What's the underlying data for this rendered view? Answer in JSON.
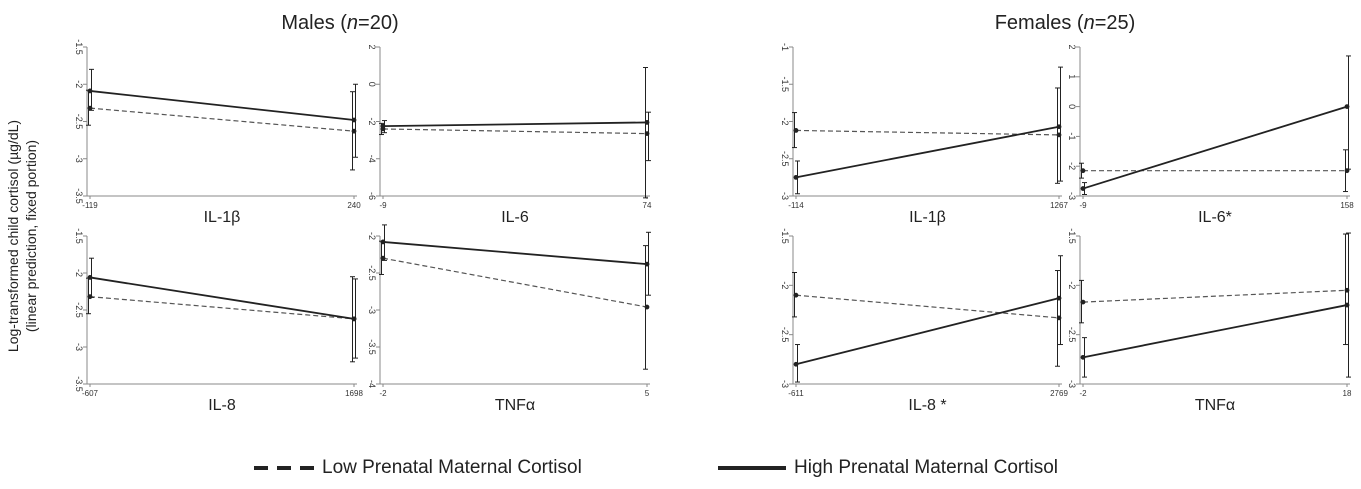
{
  "ylabel_lines": [
    "Log-transformed child cortisol (µg/dL)",
    "(linear prediction, fixed portion)"
  ],
  "groups": [
    {
      "title_prefix": "Males (",
      "title_italic": "n",
      "title_suffix": "=20)"
    },
    {
      "title_prefix": "Females (",
      "title_italic": "n",
      "title_suffix": "=25)"
    }
  ],
  "legend": {
    "low_label": "Low Prenatal Maternal Cortisol",
    "high_label": "High Prenatal Maternal Cortisol"
  },
  "colors": {
    "lines": "#222222",
    "axes": "#888888"
  },
  "chart_data": [
    {
      "type": "line",
      "group": "Males",
      "title": "IL-1β",
      "x": [
        -119,
        240
      ],
      "xticks": [
        "-119",
        "240"
      ],
      "ylim": [
        -3.5,
        -1.5
      ],
      "yticks": [
        -3.5,
        -3,
        -2.5,
        -2,
        -1.5
      ],
      "series": [
        {
          "name": "Low Prenatal Maternal Cortisol",
          "style": "dashed",
          "values": [
            -2.32,
            -2.63
          ],
          "err_low": [
            -2.55,
            -3.15
          ],
          "err_high": [
            -2.08,
            -2.1
          ]
        },
        {
          "name": "High Prenatal Maternal Cortisol",
          "style": "solid",
          "values": [
            -2.09,
            -2.48
          ],
          "err_low": [
            -2.35,
            -2.98
          ],
          "err_high": [
            -1.8,
            -2.0
          ]
        }
      ]
    },
    {
      "type": "line",
      "group": "Males",
      "title": "IL-6",
      "x": [
        -9,
        74
      ],
      "xticks": [
        "-9",
        "74"
      ],
      "ylim": [
        -6,
        2
      ],
      "yticks": [
        -6,
        -4,
        -2,
        0,
        2
      ],
      "series": [
        {
          "name": "Low Prenatal Maternal Cortisol",
          "style": "dashed",
          "values": [
            -2.4,
            -2.65
          ],
          "err_low": [
            -2.7,
            -6.1
          ],
          "err_high": [
            -2.1,
            0.9
          ]
        },
        {
          "name": "High Prenatal Maternal Cortisol",
          "style": "solid",
          "values": [
            -2.25,
            -2.05
          ],
          "err_low": [
            -2.6,
            -4.1
          ],
          "err_high": [
            -1.95,
            -1.5
          ]
        }
      ]
    },
    {
      "type": "line",
      "group": "Males",
      "title": "IL-8",
      "x": [
        -607,
        1698
      ],
      "xticks": [
        "-607",
        "1698"
      ],
      "ylim": [
        -3.5,
        -1.5
      ],
      "yticks": [
        -3.5,
        -3,
        -2.5,
        -2,
        -1.5
      ],
      "series": [
        {
          "name": "Low Prenatal Maternal Cortisol",
          "style": "dashed",
          "values": [
            -2.32,
            -2.62
          ],
          "err_low": [
            -2.55,
            -3.2
          ],
          "err_high": [
            -2.07,
            -2.05
          ]
        },
        {
          "name": "High Prenatal Maternal Cortisol",
          "style": "solid",
          "values": [
            -2.06,
            -2.62
          ],
          "err_low": [
            -2.33,
            -3.15
          ],
          "err_high": [
            -1.8,
            -2.08
          ]
        }
      ]
    },
    {
      "type": "line",
      "group": "Males",
      "title": "TNFα",
      "x": [
        -2,
        5
      ],
      "xticks": [
        "-2",
        "5"
      ],
      "ylim": [
        -4,
        -2
      ],
      "yticks": [
        -4,
        -3.5,
        -3,
        -2.5,
        -2
      ],
      "series": [
        {
          "name": "Low Prenatal Maternal Cortisol",
          "style": "dashed",
          "values": [
            -2.3,
            -2.96
          ],
          "err_low": [
            -2.52,
            -3.8
          ],
          "err_high": [
            -2.07,
            -2.13
          ]
        },
        {
          "name": "High Prenatal Maternal Cortisol",
          "style": "solid",
          "values": [
            -2.08,
            -2.38
          ],
          "err_low": [
            -2.33,
            -2.8
          ],
          "err_high": [
            -1.85,
            -1.95
          ]
        }
      ]
    },
    {
      "type": "line",
      "group": "Females",
      "title": "IL-1β",
      "x": [
        -114,
        1267
      ],
      "xticks": [
        "-114",
        "1267"
      ],
      "ylim": [
        -3,
        -1
      ],
      "yticks": [
        -3,
        -2.5,
        -2,
        -1.5,
        -1
      ],
      "series": [
        {
          "name": "Low Prenatal Maternal Cortisol",
          "style": "dashed",
          "values": [
            -2.12,
            -2.18
          ],
          "err_low": [
            -2.35,
            -2.83
          ],
          "err_high": [
            -1.88,
            -1.55
          ]
        },
        {
          "name": "High Prenatal Maternal Cortisol",
          "style": "solid",
          "values": [
            -2.75,
            -2.07
          ],
          "err_low": [
            -2.97,
            -2.8
          ],
          "err_high": [
            -2.53,
            -1.27
          ]
        }
      ]
    },
    {
      "type": "line",
      "group": "Females",
      "title": "IL-6*",
      "x": [
        -9,
        158
      ],
      "xticks": [
        "-9",
        "158"
      ],
      "ylim": [
        -3,
        2
      ],
      "yticks": [
        -3,
        -2,
        -1,
        0,
        1,
        2
      ],
      "series": [
        {
          "name": "Low Prenatal Maternal Cortisol",
          "style": "dashed",
          "values": [
            -2.15,
            -2.15
          ],
          "err_low": [
            -2.4,
            -2.85
          ],
          "err_high": [
            -1.9,
            -1.45
          ]
        },
        {
          "name": "High Prenatal Maternal Cortisol",
          "style": "solid",
          "values": [
            -2.75,
            0.0
          ],
          "err_low": [
            -2.95,
            -2.1
          ],
          "err_high": [
            -2.55,
            1.7
          ]
        }
      ]
    },
    {
      "type": "line",
      "group": "Females",
      "title": "IL-8 *",
      "x": [
        -611,
        2769
      ],
      "xticks": [
        "-611",
        "2769"
      ],
      "ylim": [
        -3,
        -1.5
      ],
      "yticks": [
        -3,
        -2.5,
        -2,
        -1.5
      ],
      "series": [
        {
          "name": "Low Prenatal Maternal Cortisol",
          "style": "dashed",
          "values": [
            -2.1,
            -2.33
          ],
          "err_low": [
            -2.32,
            -2.82
          ],
          "err_high": [
            -1.87,
            -1.85
          ]
        },
        {
          "name": "High Prenatal Maternal Cortisol",
          "style": "solid",
          "values": [
            -2.8,
            -2.13
          ],
          "err_low": [
            -2.98,
            -2.6
          ],
          "err_high": [
            -2.6,
            -1.7
          ]
        }
      ]
    },
    {
      "type": "line",
      "group": "Females",
      "title": "TNFα",
      "x": [
        -2,
        18
      ],
      "xticks": [
        "-2",
        "18"
      ],
      "ylim": [
        -3,
        -1.5
      ],
      "yticks": [
        -3,
        -2.5,
        -2,
        -1.5
      ],
      "series": [
        {
          "name": "Low Prenatal Maternal Cortisol",
          "style": "dashed",
          "values": [
            -2.17,
            -2.05
          ],
          "err_low": [
            -2.38,
            -2.6
          ],
          "err_high": [
            -1.95,
            -1.48
          ]
        },
        {
          "name": "High Prenatal Maternal Cortisol",
          "style": "solid",
          "values": [
            -2.73,
            -2.2
          ],
          "err_low": [
            -2.93,
            -2.93
          ],
          "err_high": [
            -2.53,
            -1.47
          ]
        }
      ]
    }
  ]
}
